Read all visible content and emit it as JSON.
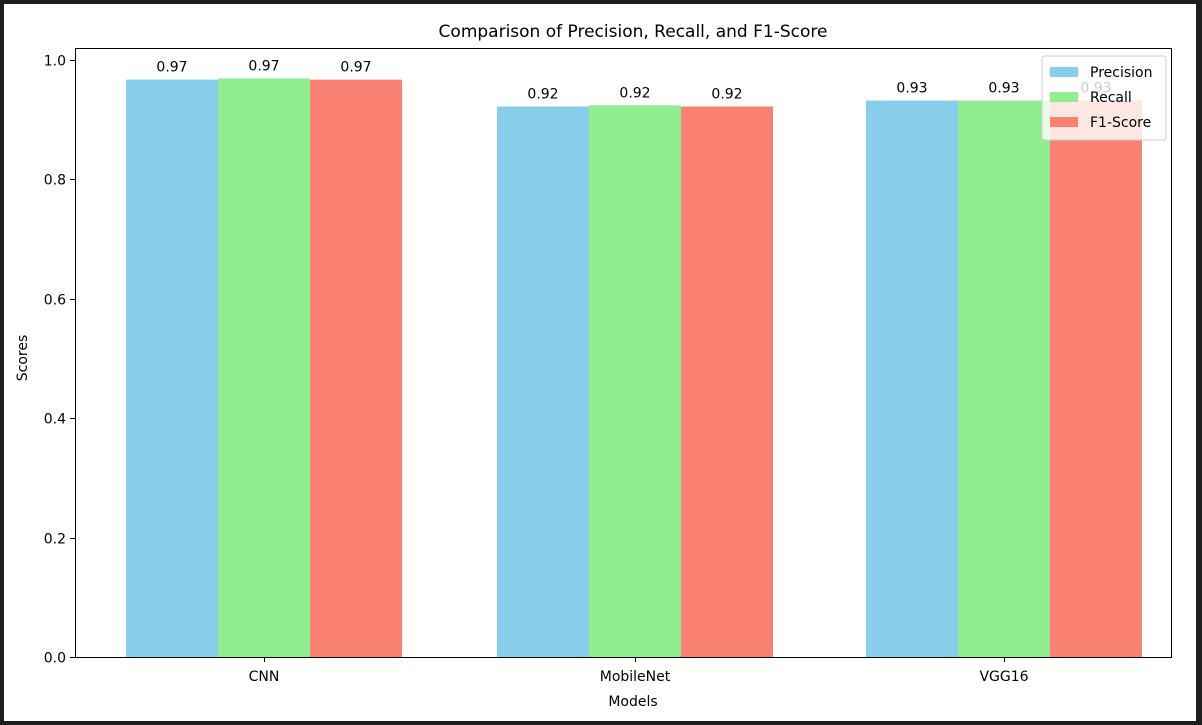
{
  "chart_data": {
    "type": "bar",
    "title": "Comparison of Precision, Recall, and F1-Score",
    "xlabel": "Models",
    "ylabel": "Scores",
    "categories": [
      "CNN",
      "MobileNet",
      "VGG16"
    ],
    "series": [
      {
        "name": "Precision",
        "color": "#87ceeb",
        "values": [
          0.967,
          0.922,
          0.932
        ],
        "labels": [
          "0.97",
          "0.92",
          "0.93"
        ]
      },
      {
        "name": "Recall",
        "color": "#90ee90",
        "values": [
          0.969,
          0.924,
          0.932
        ],
        "labels": [
          "0.97",
          "0.92",
          "0.93"
        ]
      },
      {
        "name": "F1-Score",
        "color": "#fa8072",
        "values": [
          0.967,
          0.922,
          0.932
        ],
        "labels": [
          "0.97",
          "0.92",
          "0.93"
        ]
      }
    ],
    "ylim": [
      0,
      1.02
    ],
    "yticks": [
      0.0,
      0.2,
      0.4,
      0.6,
      0.8,
      1.0
    ],
    "ytick_labels": [
      "0.0",
      "0.2",
      "0.4",
      "0.6",
      "0.8",
      "1.0"
    ],
    "grid": false,
    "legend_position": "top-right"
  }
}
